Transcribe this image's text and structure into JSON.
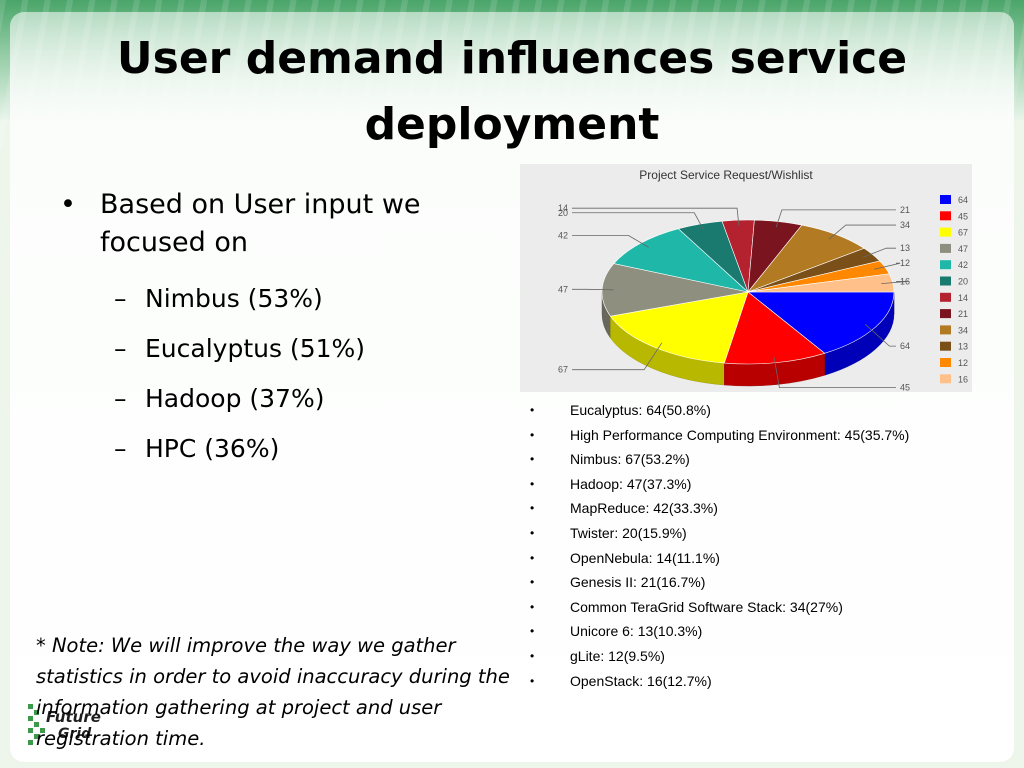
{
  "slide": {
    "title_line1": "User demand influences service",
    "title_line2": "deployment",
    "bullet_marker": "•",
    "sub_marker": "–",
    "bullet_main": "Based on User input we focused on",
    "sub_bullets": [
      "Nimbus (53%)",
      "Eucalyptus (51%)",
      "Hadoop (37%)",
      "HPC (36%)"
    ],
    "note": "* Note: We will improve the way we gather statistics in order to avoid inaccuracy  during the information gathering at project and user registration time.",
    "logo_text_1": "Future",
    "logo_text_2": "Grid"
  },
  "stats_list": [
    "Eucalyptus: 64(50.8%)",
    "High Performance Computing Environment: 45(35.7%)",
    "Nimbus: 67(53.2%)",
    "Hadoop: 47(37.3%)",
    "MapReduce: 42(33.3%)",
    "Twister: 20(15.9%)",
    "OpenNebula: 14(11.1%)",
    "Genesis II: 21(16.7%)",
    "Common TeraGrid Software Stack: 34(27%)",
    "Unicore 6: 13(10.3%)",
    "gLite: 12(9.5%)",
    "OpenStack: 16(12.7%)"
  ],
  "chart_data": {
    "type": "pie",
    "title": "Project Service Request/Wishlist",
    "legend_position": "right",
    "values": [
      64,
      45,
      67,
      47,
      42,
      20,
      14,
      21,
      34,
      13,
      12,
      16
    ],
    "labels": [
      "64",
      "45",
      "67",
      "47",
      "42",
      "20",
      "14",
      "21",
      "34",
      "13",
      "12",
      "16"
    ],
    "colors": [
      "#0000ff",
      "#ff0000",
      "#ffff00",
      "#8f8f7f",
      "#1fb8a8",
      "#1a7a70",
      "#b3222e",
      "#7a1520",
      "#b27a22",
      "#7a5018",
      "#ff8800",
      "#ffc08a"
    ],
    "three_d": true
  }
}
